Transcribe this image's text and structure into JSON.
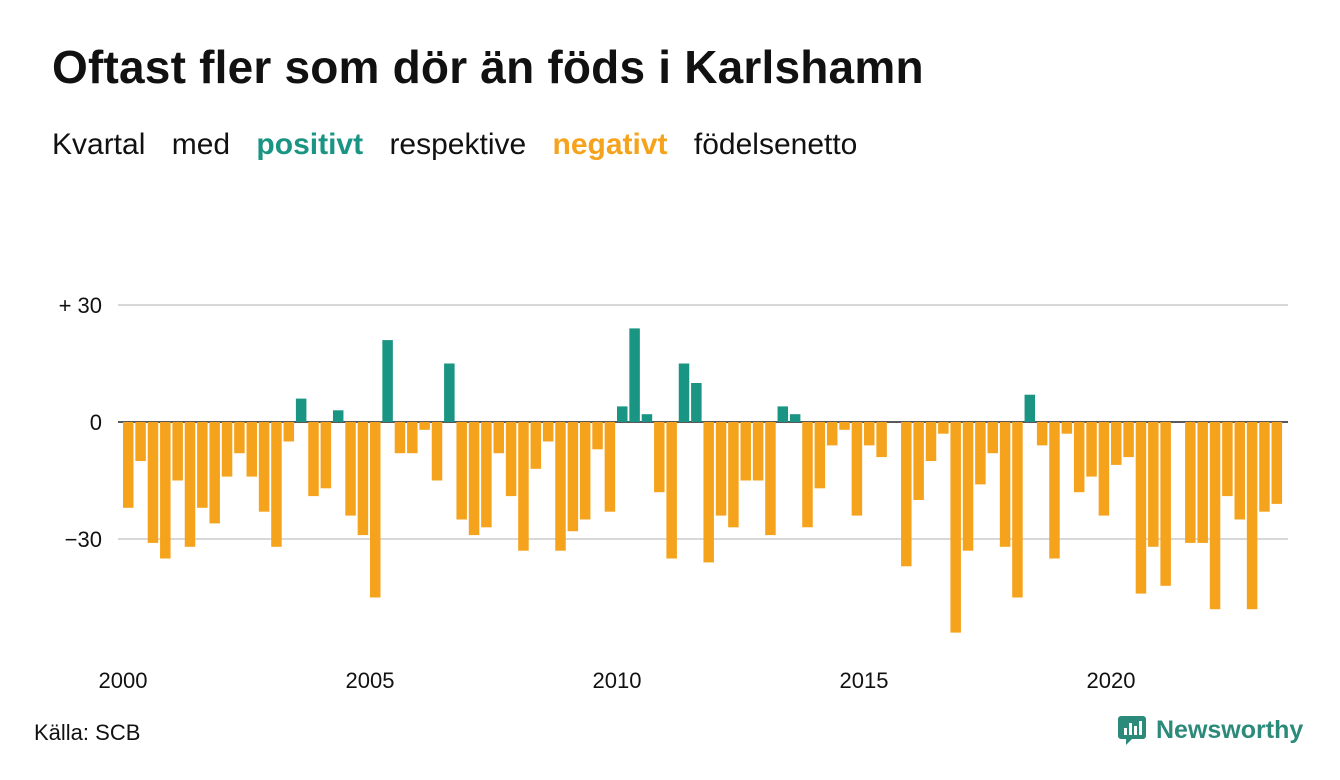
{
  "title": "Oftast fler som dör än föds i Karlshamn",
  "subtitle": {
    "w1": "Kvartal",
    "w2": "med",
    "positive": "positivt",
    "w3": "respektive",
    "negative": "negativt",
    "w4": "födelsenetto"
  },
  "colors": {
    "positive": "#1a9483",
    "negative": "#f5a31c",
    "grid": "#d8d8d8"
  },
  "source": "Källa: SCB",
  "logo": {
    "text": "Newsworthy",
    "icon": "newsworthy-logo-icon"
  },
  "chart_data": {
    "type": "bar",
    "title": "Oftast fler som dör än föds i Karlshamn",
    "xlabel": "",
    "ylabel": "",
    "ylim": [
      -55,
      30
    ],
    "yticks": [
      30,
      0,
      -30
    ],
    "ytick_labels": [
      "+ 30",
      "0",
      "−30"
    ],
    "xticks": [
      2000,
      2005,
      2010,
      2015,
      2020
    ],
    "x_start_year": 2000,
    "periods_per_year": 4,
    "grid": true,
    "values": [
      -22,
      -10,
      -31,
      -35,
      -15,
      -32,
      -22,
      -26,
      -14,
      -8,
      -14,
      -23,
      -32,
      -5,
      6,
      -19,
      -17,
      3,
      -24,
      -29,
      -45,
      21,
      -8,
      -8,
      -2,
      -15,
      15,
      -25,
      -29,
      -27,
      -8,
      -19,
      -33,
      -12,
      -5,
      -33,
      -28,
      -25,
      -7,
      -23,
      4,
      24,
      2,
      -18,
      -35,
      15,
      10,
      -36,
      -24,
      -27,
      -15,
      -15,
      -29,
      4,
      2,
      -27,
      -17,
      -6,
      -2,
      -24,
      -6,
      -9,
      0,
      -37,
      -20,
      -10,
      -3,
      -54,
      -33,
      -16,
      -8,
      -32,
      -45,
      7,
      -6,
      -35,
      -3,
      -18,
      -14,
      -24,
      -11,
      -9,
      -44,
      -32,
      -42,
      0,
      -31,
      -31,
      -48,
      -19,
      -25,
      -48,
      -23,
      -21
    ]
  }
}
